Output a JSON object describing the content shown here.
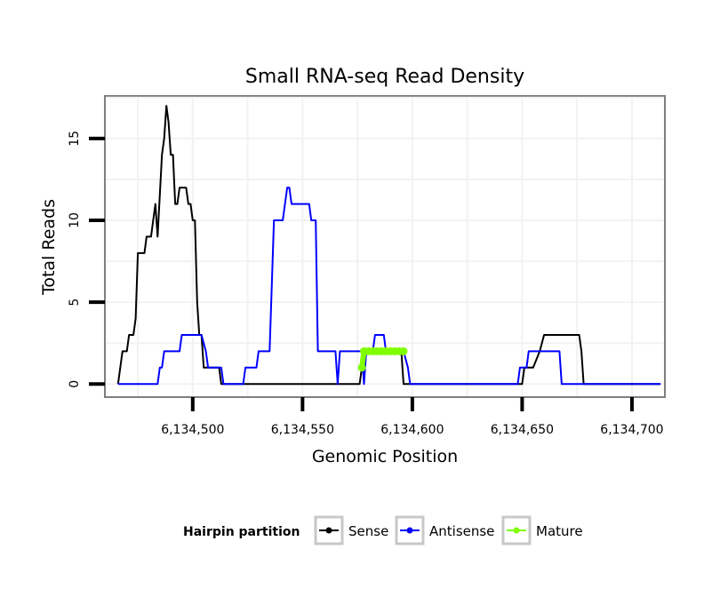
{
  "chart_data": {
    "type": "line",
    "title": "Small RNA-seq Read Density",
    "xlabel": "Genomic Position",
    "ylabel": "Total Reads",
    "xlim": [
      6134460,
      6134715
    ],
    "ylim": [
      -0.8,
      17.6
    ],
    "x_ticks": [
      6134500,
      6134550,
      6134600,
      6134650,
      6134700
    ],
    "x_tick_labels": [
      "6,134,500",
      "6,134,550",
      "6,134,600",
      "6,134,650",
      "6,134,700"
    ],
    "y_ticks": [
      0,
      5,
      10,
      15
    ],
    "y_tick_labels": [
      "0",
      "5",
      "10",
      "15"
    ],
    "grid": true,
    "legend": {
      "title": "Hairpin partition",
      "position": "bottom",
      "entries": [
        "Sense",
        "Antisense",
        "Mature"
      ]
    },
    "series": [
      {
        "name": "Sense",
        "color": "#000000",
        "points": [
          [
            6134466,
            0
          ],
          [
            6134468,
            2
          ],
          [
            6134470,
            2
          ],
          [
            6134471,
            3
          ],
          [
            6134473,
            3
          ],
          [
            6134474,
            4
          ],
          [
            6134475,
            8
          ],
          [
            6134478,
            8
          ],
          [
            6134479,
            9
          ],
          [
            6134481,
            9
          ],
          [
            6134483,
            11
          ],
          [
            6134484,
            9
          ],
          [
            6134486,
            14
          ],
          [
            6134487,
            15
          ],
          [
            6134488,
            17
          ],
          [
            6134489,
            16
          ],
          [
            6134490,
            14
          ],
          [
            6134491,
            14
          ],
          [
            6134492,
            11
          ],
          [
            6134493,
            11
          ],
          [
            6134494,
            12
          ],
          [
            6134497,
            12
          ],
          [
            6134498,
            11
          ],
          [
            6134499,
            11
          ],
          [
            6134500,
            10
          ],
          [
            6134501,
            10
          ],
          [
            6134502,
            5
          ],
          [
            6134503,
            3
          ],
          [
            6134504,
            3
          ],
          [
            6134505,
            1
          ],
          [
            6134508,
            1
          ],
          [
            6134509,
            1
          ],
          [
            6134512,
            1
          ],
          [
            6134513,
            0
          ],
          [
            6134565,
            0
          ],
          [
            6134566,
            0
          ],
          [
            6134576,
            0
          ],
          [
            6134577,
            1
          ],
          [
            6134578,
            2
          ],
          [
            6134592,
            2
          ],
          [
            6134595,
            2
          ],
          [
            6134596,
            0
          ],
          [
            6134648,
            0
          ],
          [
            6134650,
            0
          ],
          [
            6134651,
            1
          ],
          [
            6134655,
            1
          ],
          [
            6134658,
            2
          ],
          [
            6134660,
            3
          ],
          [
            6134676,
            3
          ],
          [
            6134677,
            2
          ],
          [
            6134678,
            0
          ],
          [
            6134713,
            0
          ]
        ]
      },
      {
        "name": "Antisense",
        "color": "#0000ff",
        "points": [
          [
            6134466,
            0
          ],
          [
            6134484,
            0
          ],
          [
            6134485,
            1
          ],
          [
            6134486,
            1
          ],
          [
            6134487,
            2
          ],
          [
            6134494,
            2
          ],
          [
            6134495,
            3
          ],
          [
            6134504,
            3
          ],
          [
            6134506,
            2
          ],
          [
            6134507,
            1
          ],
          [
            6134513,
            1
          ],
          [
            6134514,
            0
          ],
          [
            6134523,
            0
          ],
          [
            6134524,
            1
          ],
          [
            6134529,
            1
          ],
          [
            6134530,
            2
          ],
          [
            6134535,
            2
          ],
          [
            6134537,
            10
          ],
          [
            6134541,
            10
          ],
          [
            6134543,
            12
          ],
          [
            6134544,
            12
          ],
          [
            6134545,
            11
          ],
          [
            6134553,
            11
          ],
          [
            6134554,
            10
          ],
          [
            6134556,
            10
          ],
          [
            6134557,
            2
          ],
          [
            6134565,
            2
          ],
          [
            6134566,
            0
          ],
          [
            6134567,
            2
          ],
          [
            6134577,
            2
          ],
          [
            6134578,
            0
          ],
          [
            6134579,
            2
          ],
          [
            6134582,
            2
          ],
          [
            6134583,
            3
          ],
          [
            6134587,
            3
          ],
          [
            6134588,
            2
          ],
          [
            6134596,
            2
          ],
          [
            6134598,
            1
          ],
          [
            6134599,
            0
          ],
          [
            6134648,
            0
          ],
          [
            6134649,
            1
          ],
          [
            6134652,
            1
          ],
          [
            6134653,
            2
          ],
          [
            6134667,
            2
          ],
          [
            6134668,
            0
          ],
          [
            6134713,
            0
          ]
        ]
      },
      {
        "name": "Mature",
        "color": "#80ff00",
        "points": [
          [
            6134577,
            1
          ],
          [
            6134578,
            2
          ],
          [
            6134580,
            2
          ],
          [
            6134582,
            2
          ],
          [
            6134584,
            2
          ],
          [
            6134586,
            2
          ],
          [
            6134588,
            2
          ],
          [
            6134590,
            2
          ],
          [
            6134592,
            2
          ],
          [
            6134594,
            2
          ],
          [
            6134596,
            2
          ]
        ]
      }
    ]
  }
}
